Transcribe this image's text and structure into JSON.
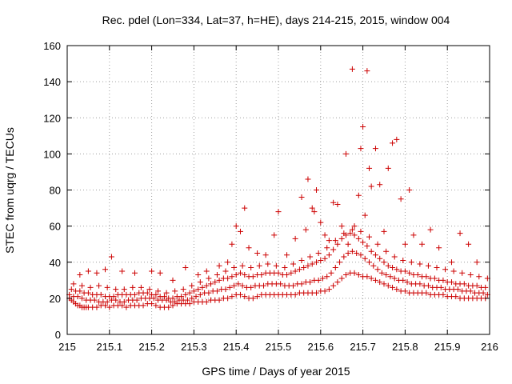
{
  "chart_data": {
    "type": "scatter",
    "title": "Rec. pdel (Lon=334, Lat=37, h=HE), days 214-215, 2015, window 004",
    "xlabel": "GPS time / Days of year 2015",
    "ylabel": "STEC from uqrg / TECUs",
    "xlim": [
      215,
      216
    ],
    "ylim": [
      0,
      160
    ],
    "xticks": [
      215,
      215.1,
      215.2,
      215.3,
      215.4,
      215.5,
      215.6,
      215.7,
      215.8,
      215.9,
      216
    ],
    "xtick_labels": [
      "215",
      "215.1",
      "215.2",
      "215.3",
      "215.4",
      "215.5",
      "215.6",
      "215.7",
      "215.8",
      "215.9",
      "216"
    ],
    "yticks": [
      0,
      20,
      40,
      60,
      80,
      100,
      120,
      140,
      160
    ],
    "ytick_labels": [
      "0",
      "20",
      "40",
      "60",
      "80",
      "100",
      "120",
      "140",
      "160"
    ],
    "grid": true,
    "marker": "plus",
    "color": "#cc0000",
    "series": [
      {
        "x": [
          215.005,
          215.01,
          215.015,
          215.02,
          215.025,
          215.03,
          215.035,
          215.04,
          215.045,
          215.05,
          215.06,
          215.07,
          215.08,
          215.09,
          215.1,
          215.11,
          215.12,
          215.13,
          215.14,
          215.15,
          215.16,
          215.17,
          215.18,
          215.19,
          215.2,
          215.21,
          215.22,
          215.23,
          215.24,
          215.25,
          215.26,
          215.27,
          215.28,
          215.29,
          215.3,
          215.31,
          215.32,
          215.33,
          215.34,
          215.35,
          215.36,
          215.37,
          215.38,
          215.39,
          215.4,
          215.41,
          215.42,
          215.43,
          215.44,
          215.45,
          215.46,
          215.47,
          215.48,
          215.49,
          215.5,
          215.51,
          215.52,
          215.53,
          215.54,
          215.55,
          215.56,
          215.57,
          215.58,
          215.59,
          215.6,
          215.61,
          215.62,
          215.63,
          215.64,
          215.65,
          215.66,
          215.67,
          215.68,
          215.69,
          215.7,
          215.71,
          215.72,
          215.73,
          215.74,
          215.75,
          215.76,
          215.77,
          215.78,
          215.79,
          215.8,
          215.81,
          215.82,
          215.83,
          215.84,
          215.85,
          215.86,
          215.87,
          215.88,
          215.89,
          215.9,
          215.91,
          215.92,
          215.93,
          215.94,
          215.95,
          215.96,
          215.97,
          215.98,
          215.99
        ],
        "y": [
          20,
          19,
          18,
          17,
          16,
          16,
          15,
          15,
          15,
          15,
          15,
          15,
          16,
          16,
          15,
          16,
          16,
          16,
          15,
          16,
          16,
          16,
          16,
          17,
          17,
          16,
          15,
          15,
          15,
          16,
          17,
          17,
          17,
          17,
          18,
          18,
          18,
          18,
          19,
          19,
          19,
          20,
          20,
          21,
          22,
          22,
          21,
          20,
          20,
          21,
          22,
          22,
          22,
          22,
          22,
          22,
          22,
          22,
          22,
          23,
          23,
          23,
          23,
          23,
          24,
          24,
          25,
          27,
          29,
          31,
          33,
          34,
          34,
          33,
          32,
          32,
          31,
          30,
          29,
          28,
          27,
          26,
          25,
          24,
          24,
          23,
          23,
          23,
          23,
          23,
          22,
          22,
          22,
          22,
          21,
          21,
          21,
          20,
          20,
          20,
          20,
          20,
          20,
          20
        ]
      },
      {
        "x": [
          215.005,
          215.015,
          215.025,
          215.035,
          215.045,
          215.055,
          215.065,
          215.075,
          215.085,
          215.095,
          215.105,
          215.115,
          215.125,
          215.135,
          215.145,
          215.155,
          215.165,
          215.175,
          215.185,
          215.195,
          215.205,
          215.215,
          215.225,
          215.235,
          215.245,
          215.255,
          215.265,
          215.275,
          215.285,
          215.295,
          215.305,
          215.315,
          215.325,
          215.335,
          215.345,
          215.355,
          215.365,
          215.375,
          215.385,
          215.395,
          215.405,
          215.415,
          215.425,
          215.435,
          215.445,
          215.455,
          215.465,
          215.475,
          215.485,
          215.495,
          215.505,
          215.515,
          215.525,
          215.535,
          215.545,
          215.555,
          215.565,
          215.575,
          215.585,
          215.595,
          215.605,
          215.615,
          215.625,
          215.635,
          215.645,
          215.655,
          215.665,
          215.675,
          215.685,
          215.695,
          215.705,
          215.715,
          215.725,
          215.735,
          215.745,
          215.755,
          215.765,
          215.775,
          215.785,
          215.795,
          215.805,
          215.815,
          215.825,
          215.835,
          215.845,
          215.855,
          215.865,
          215.875,
          215.885,
          215.895,
          215.905,
          215.915,
          215.925,
          215.935,
          215.945,
          215.955,
          215.965,
          215.975,
          215.985,
          215.995
        ],
        "y": [
          22,
          21,
          21,
          20,
          19,
          19,
          19,
          18,
          18,
          18,
          19,
          19,
          18,
          18,
          19,
          19,
          19,
          20,
          20,
          20,
          20,
          19,
          19,
          19,
          18,
          18,
          19,
          19,
          19,
          20,
          21,
          22,
          23,
          23,
          24,
          24,
          25,
          25,
          26,
          27,
          28,
          27,
          26,
          26,
          27,
          27,
          27,
          28,
          28,
          28,
          28,
          27,
          27,
          27,
          28,
          28,
          29,
          29,
          30,
          30,
          31,
          32,
          34,
          37,
          40,
          43,
          45,
          46,
          45,
          44,
          42,
          40,
          38,
          36,
          34,
          33,
          32,
          31,
          30,
          30,
          29,
          28,
          28,
          28,
          27,
          27,
          26,
          26,
          26,
          25,
          25,
          25,
          25,
          24,
          24,
          24,
          23,
          23,
          23,
          22
        ]
      },
      {
        "x": [
          215.01,
          215.02,
          215.03,
          215.04,
          215.05,
          215.06,
          215.07,
          215.08,
          215.09,
          215.1,
          215.11,
          215.12,
          215.13,
          215.14,
          215.15,
          215.16,
          215.17,
          215.18,
          215.19,
          215.2,
          215.21,
          215.22,
          215.23,
          215.24,
          215.25,
          215.26,
          215.27,
          215.28,
          215.29,
          215.3,
          215.31,
          215.32,
          215.33,
          215.34,
          215.35,
          215.36,
          215.37,
          215.38,
          215.39,
          215.4,
          215.41,
          215.42,
          215.43,
          215.44,
          215.45,
          215.46,
          215.47,
          215.48,
          215.49,
          215.5,
          215.51,
          215.52,
          215.53,
          215.54,
          215.55,
          215.56,
          215.57,
          215.58,
          215.59,
          215.6,
          215.61,
          215.62,
          215.63,
          215.64,
          215.65,
          215.66,
          215.67,
          215.68,
          215.69,
          215.7,
          215.71,
          215.72,
          215.73,
          215.74,
          215.75,
          215.76,
          215.77,
          215.78,
          215.79,
          215.8,
          215.81,
          215.82,
          215.83,
          215.84,
          215.85,
          215.86,
          215.87,
          215.88,
          215.89,
          215.9,
          215.91,
          215.92,
          215.93,
          215.94,
          215.95,
          215.96,
          215.97,
          215.98,
          215.99
        ],
        "y": [
          25,
          24,
          24,
          23,
          23,
          22,
          22,
          22,
          21,
          21,
          21,
          22,
          22,
          22,
          22,
          22,
          23,
          23,
          23,
          22,
          22,
          21,
          21,
          20,
          20,
          21,
          21,
          22,
          23,
          24,
          25,
          26,
          27,
          28,
          29,
          30,
          31,
          31,
          32,
          33,
          34,
          33,
          32,
          32,
          33,
          33,
          34,
          34,
          34,
          34,
          33,
          33,
          34,
          35,
          36,
          37,
          38,
          39,
          40,
          41,
          42,
          44,
          47,
          50,
          53,
          55,
          56,
          55,
          53,
          51,
          49,
          46,
          44,
          42,
          40,
          38,
          37,
          36,
          35,
          35,
          34,
          33,
          33,
          32,
          32,
          31,
          31,
          30,
          30,
          29,
          29,
          28,
          28,
          28,
          27,
          27,
          27,
          26,
          26
        ]
      },
      {
        "x": [
          215.015,
          215.035,
          215.055,
          215.075,
          215.095,
          215.115,
          215.135,
          215.155,
          215.175,
          215.195,
          215.215,
          215.235,
          215.255,
          215.275,
          215.295,
          215.315,
          215.335,
          215.355,
          215.375,
          215.395,
          215.415,
          215.435,
          215.455,
          215.475,
          215.495,
          215.515,
          215.535,
          215.555,
          215.575,
          215.595,
          215.615,
          215.635,
          215.655,
          215.675,
          215.695,
          215.715,
          215.735,
          215.755,
          215.775,
          215.795,
          215.815,
          215.835,
          215.855,
          215.875,
          215.895,
          215.915,
          215.935,
          215.955,
          215.975,
          215.995
        ],
        "y": [
          28,
          27,
          26,
          27,
          26,
          25,
          25,
          26,
          26,
          25,
          24,
          23,
          24,
          25,
          27,
          29,
          31,
          33,
          35,
          37,
          38,
          37,
          38,
          39,
          38,
          37,
          39,
          41,
          43,
          45,
          48,
          52,
          56,
          58,
          57,
          54,
          50,
          46,
          43,
          41,
          40,
          39,
          38,
          37,
          36,
          35,
          34,
          33,
          32,
          31
        ]
      },
      {
        "x": [
          215.03,
          215.05,
          215.07,
          215.09,
          215.105,
          215.13,
          215.16,
          215.2,
          215.22,
          215.25,
          215.28,
          215.31,
          215.33,
          215.36,
          215.38,
          215.39,
          215.4,
          215.41,
          215.42,
          215.43,
          215.45,
          215.47,
          215.49,
          215.5,
          215.52,
          215.54,
          215.555,
          215.565,
          215.57,
          215.58,
          215.585,
          215.59,
          215.6,
          215.61,
          215.62,
          215.63,
          215.64,
          215.65,
          215.66,
          215.665,
          215.675,
          215.68,
          215.69,
          215.695,
          215.7,
          215.705,
          215.71,
          215.715,
          215.72,
          215.73,
          215.74,
          215.75,
          215.76,
          215.77,
          215.78,
          215.79,
          215.8,
          215.81,
          215.82,
          215.84,
          215.86,
          215.88,
          215.91,
          215.93,
          215.95,
          215.97
        ],
        "y": [
          33,
          35,
          34,
          36,
          43,
          35,
          34,
          35,
          34,
          30,
          37,
          33,
          35,
          38,
          40,
          50,
          60,
          57,
          70,
          48,
          45,
          44,
          55,
          68,
          44,
          53,
          76,
          58,
          86,
          70,
          68,
          80,
          62,
          55,
          52,
          73,
          72,
          60,
          100,
          50,
          147,
          60,
          77,
          103,
          115,
          66,
          146,
          92,
          82,
          103,
          83,
          57,
          92,
          106,
          108,
          75,
          50,
          80,
          55,
          50,
          58,
          48,
          40,
          56,
          50,
          40
        ]
      }
    ]
  }
}
